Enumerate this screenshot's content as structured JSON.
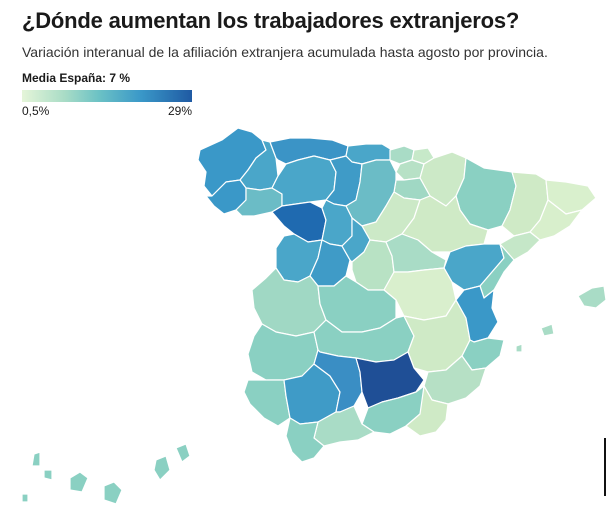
{
  "header": {
    "title": "¿Dónde aumentan los trabajadores extranjeros?",
    "subtitle": "Variación interanual de la afiliación extranjera acumulada hasta agosto por provincia."
  },
  "legend": {
    "label": "Media España: 7 %",
    "min_label": "0,5%",
    "max_label": "29%",
    "min_value": 0.5,
    "max_value": 29,
    "colors": [
      "#e5f5d9",
      "#a9dcc6",
      "#6cc2c5",
      "#3a98c8",
      "#1f5aa3"
    ]
  },
  "map": {
    "fills": {
      "coruna": "#3a98c8",
      "lugo": "#4aa6c9",
      "asturias": "#3b94c6",
      "cantabria": "#4aa6c9",
      "vizcaya": "#a9dcc6",
      "guipuzcoa": "#c7e9c9",
      "navarra": "#cce9c7",
      "huesca": "#8ad0c2",
      "lleida": "#cfeac6",
      "girona": "#d9f0cd",
      "barcelona": "#d8efcc",
      "pontevedra": "#3a98c8",
      "ourense": "#6bbcc6",
      "leon": "#4aa6c9",
      "palencia": "#3f9bc7",
      "burgos": "#6bbcc6",
      "alava": "#b7e1c6",
      "larioja": "#a0d8c4",
      "zamora": "#1f6ab0",
      "valladolid": "#4aa6c9",
      "soria": "#cce9c7",
      "zaragoza": "#cfeac6",
      "tarragona": "#c5e7c8",
      "salamanca": "#4aa6c9",
      "avila": "#3f9bc7",
      "segovia": "#4aa6c9",
      "guadalajara": "#a9dcc6",
      "madrid": "#b8e2c4",
      "teruel": "#4aa6c9",
      "castellon": "#8ad0c2",
      "caceres": "#a0d8c4",
      "toledo": "#8ad0c2",
      "cuenca": "#d9efcd",
      "valencia": "#3a98c8",
      "badajoz": "#8ad0c2",
      "ciudadreal": "#8ad0c2",
      "albacete": "#cfeac6",
      "alicante": "#8ad0c2",
      "murcia": "#b6e0c5",
      "huelva": "#8ad0c2",
      "sevilla": "#3f9bc7",
      "cordoba": "#3a8ec4",
      "jaen": "#1f4f96",
      "granada": "#8ad0c2",
      "almeria": "#cfeac6",
      "cadiz": "#8ad0c2",
      "malaga": "#a9dcc6",
      "baleares": "#a9dcc6",
      "canarias": "#8ad0c2"
    }
  }
}
